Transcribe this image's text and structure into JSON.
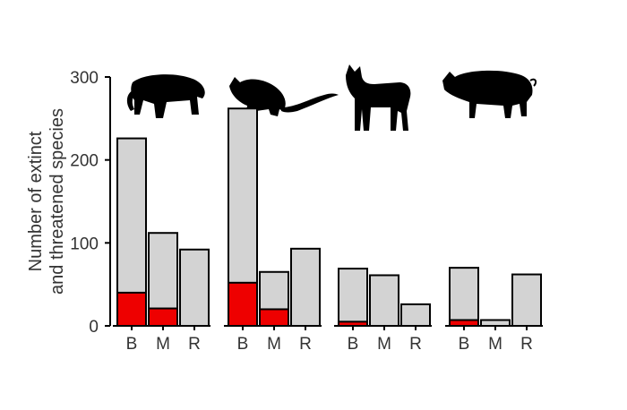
{
  "chart_data": {
    "type": "bar",
    "stacked": true,
    "ylabel_line1": "Number of extinct",
    "ylabel_line2": "and threatened species",
    "ylim": [
      0,
      300
    ],
    "yticks": [
      0,
      100,
      200,
      300
    ],
    "categories": [
      "B",
      "M",
      "R"
    ],
    "colors": {
      "extinct": "#ee0000",
      "threatened": "#d3d3d3",
      "outline": "#000000"
    },
    "panels": [
      {
        "icon": "cat-silhouette-icon",
        "total": [
          226,
          112,
          92
        ],
        "extinct": [
          40,
          21,
          0
        ]
      },
      {
        "icon": "rat-silhouette-icon",
        "total": [
          262,
          65,
          93
        ],
        "extinct": [
          52,
          20,
          0
        ]
      },
      {
        "icon": "dog-silhouette-icon",
        "total": [
          69,
          61,
          26
        ],
        "extinct": [
          5,
          0,
          0
        ]
      },
      {
        "icon": "pig-silhouette-icon",
        "total": [
          70,
          7,
          62
        ],
        "extinct": [
          7,
          0,
          0
        ]
      }
    ]
  }
}
